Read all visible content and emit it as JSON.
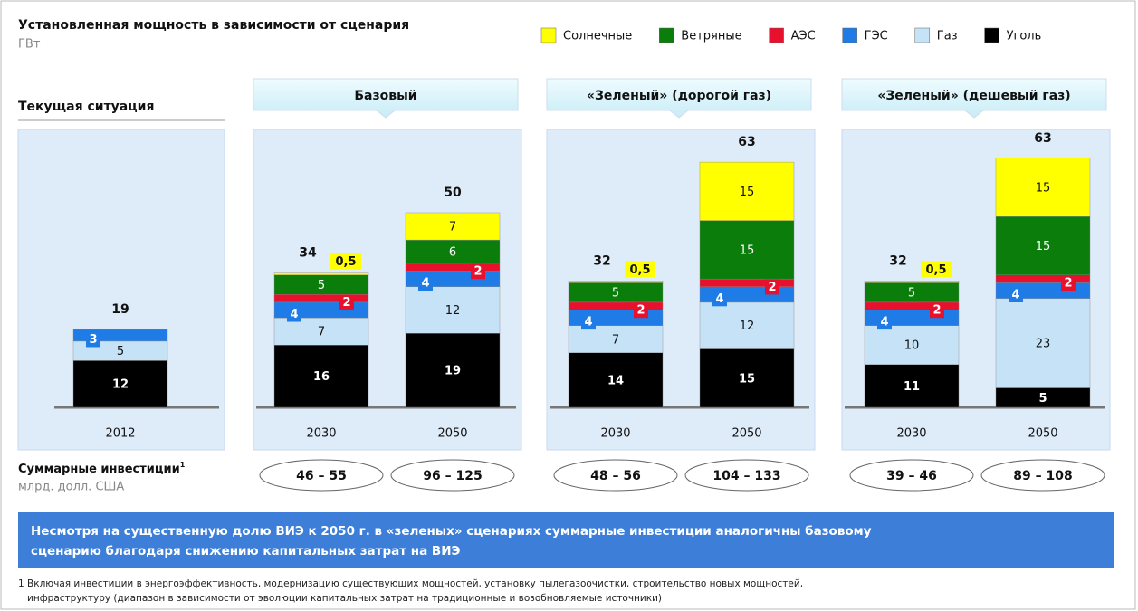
{
  "chart_data": {
    "type": "bar",
    "stacked": true,
    "title": "Установленная мощность в зависимости от сценария",
    "subtitle": "ГВт",
    "current_label": "Текущая ситуация",
    "groups": [
      "Базовый",
      "«Зеленый»  (дорогой газ)",
      "«Зеленый» (дешевый газ)"
    ],
    "categories": [
      "2012",
      "2030",
      "2050",
      "2030",
      "2050",
      "2030",
      "2050"
    ],
    "series": [
      {
        "name": "Солнечные",
        "color": "#ffff00",
        "values": [
          null,
          0.5,
          7,
          0.5,
          15,
          0.5,
          15
        ],
        "value_labels": [
          null,
          "0,5",
          "7",
          "0,5",
          "15",
          "0,5",
          "15"
        ]
      },
      {
        "name": "Ветряные",
        "color": "#0a7d0a",
        "values": [
          null,
          5,
          6,
          5,
          15,
          5,
          15
        ]
      },
      {
        "name": "АЭС",
        "color": "#e8112d",
        "values": [
          null,
          2,
          2,
          2,
          2,
          2,
          2
        ]
      },
      {
        "name": "ГЭС",
        "color": "#1f7be6",
        "values": [
          3,
          4,
          4,
          4,
          4,
          4,
          4
        ]
      },
      {
        "name": "Газ",
        "color": "#c6e2f7",
        "values": [
          5,
          7,
          12,
          7,
          12,
          10,
          23
        ]
      },
      {
        "name": "Уголь",
        "color": "#000000",
        "values": [
          12,
          16,
          19,
          14,
          15,
          11,
          5
        ]
      }
    ],
    "totals": [
      19,
      34,
      50,
      32,
      63,
      32,
      63
    ],
    "investment_label": "Суммарные инвестиции",
    "investment_note": "1",
    "investment_unit": "млрд. долл. США",
    "investments": [
      null,
      "46 – 55",
      "96 – 125",
      "48 – 56",
      "104 – 133",
      "39 – 46",
      "89 – 108"
    ],
    "conclusion": [
      "Несмотря на существенную долю ВИЭ  к 2050 г. в «зеленых» сценариях суммарные инвестиции аналогичны базовому",
      "сценарию благодаря снижению капитальных затрат на ВИЭ"
    ],
    "footnote": [
      "1 Включая инвестиции в энергоэффективность, модернизацию существующих мощностей, установку пылегазоочистки, строительство новых мощностей,",
      "инфраструктуру (диапазон в зависимости от эволюции капитальных затрат на традиционные и возобновляемые источники)"
    ]
  }
}
